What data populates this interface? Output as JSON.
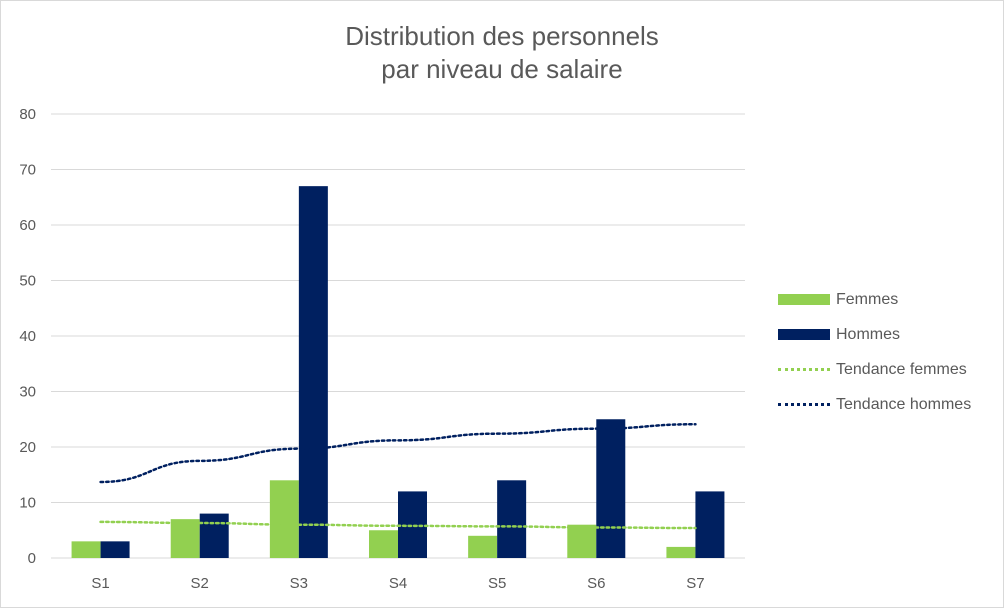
{
  "title_line1": "Distribution des personnels",
  "title_line2": "par niveau de salaire",
  "colors": {
    "femmes": "#92d050",
    "hommes": "#002060",
    "grid": "#d9d9d9",
    "text": "#595959"
  },
  "legend": {
    "femmes": "Femmes",
    "hommes": "Hommes",
    "tendance_femmes": "Tendance femmes",
    "tendance_hommes": "Tendance hommes"
  },
  "chart_data": {
    "type": "bar",
    "title": "Distribution des personnels par niveau de salaire",
    "categories": [
      "S1",
      "S2",
      "S3",
      "S4",
      "S5",
      "S6",
      "S7"
    ],
    "series": [
      {
        "name": "Femmes",
        "values": [
          3,
          7,
          14,
          5,
          4,
          6,
          2
        ]
      },
      {
        "name": "Hommes",
        "values": [
          3,
          8,
          67,
          12,
          14,
          25,
          12
        ]
      }
    ],
    "trendlines": [
      {
        "name": "Tendance femmes",
        "style": "dotted",
        "values": [
          6.5,
          6.3,
          6.0,
          5.8,
          5.7,
          5.5,
          5.4
        ]
      },
      {
        "name": "Tendance hommes",
        "style": "dotted",
        "values": [
          13.7,
          17.5,
          19.7,
          21.2,
          22.4,
          23.3,
          24.1
        ]
      }
    ],
    "ylim": [
      0,
      80
    ],
    "yticks": [
      "0",
      "10",
      "20",
      "30",
      "40",
      "50",
      "60",
      "70",
      "80"
    ],
    "xlabel": "",
    "ylabel": "",
    "grid": true,
    "legend_position": "right"
  }
}
